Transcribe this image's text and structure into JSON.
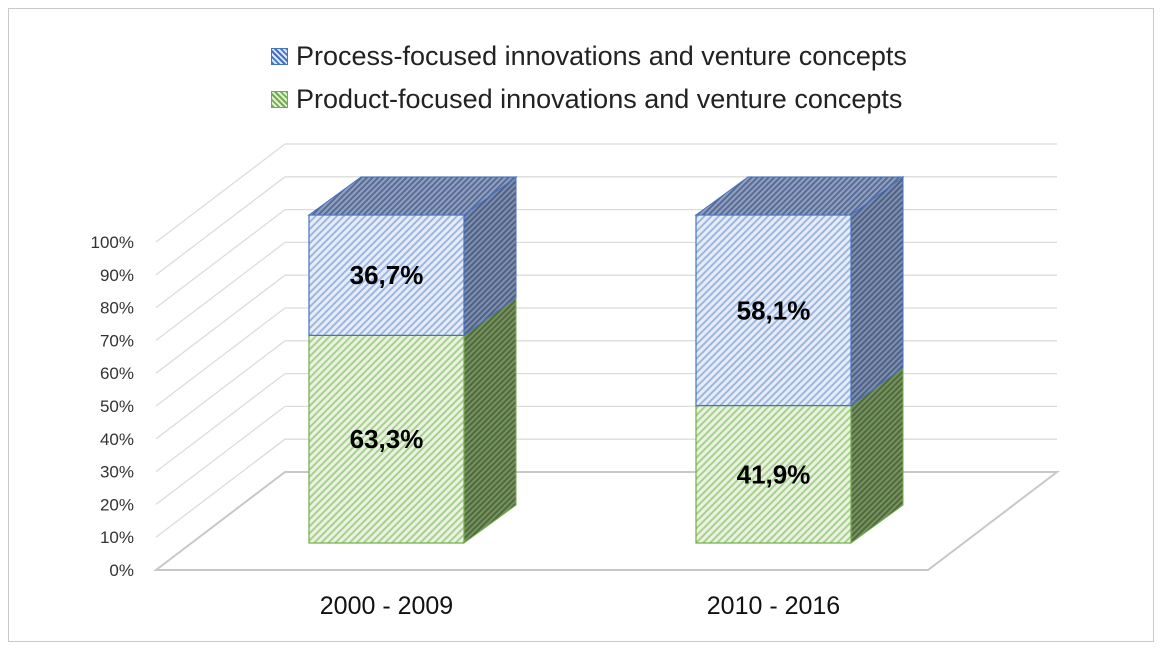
{
  "chart_data": {
    "type": "bar",
    "stacked": true,
    "three_d": true,
    "percent_axis": true,
    "categories": [
      "2000 - 2009",
      "2010 - 2016"
    ],
    "series": [
      {
        "name": "Product-focused innovations and venture concepts",
        "values": [
          63.3,
          41.9
        ],
        "labels": [
          "63,3%",
          "41,9%"
        ],
        "color": "#70ad47"
      },
      {
        "name": "Process-focused innovations and venture concepts",
        "values": [
          36.7,
          58.1
        ],
        "labels": [
          "36,7%",
          "58,1%"
        ],
        "color": "#4472c4"
      }
    ],
    "ylim": [
      0,
      100
    ],
    "yticks": [
      "0%",
      "10%",
      "20%",
      "30%",
      "40%",
      "50%",
      "60%",
      "70%",
      "80%",
      "90%",
      "100%"
    ],
    "legend_position": "top",
    "legend": [
      "Process-focused innovations and venture concepts",
      "Product-focused innovations and venture concepts"
    ],
    "grid": true
  }
}
